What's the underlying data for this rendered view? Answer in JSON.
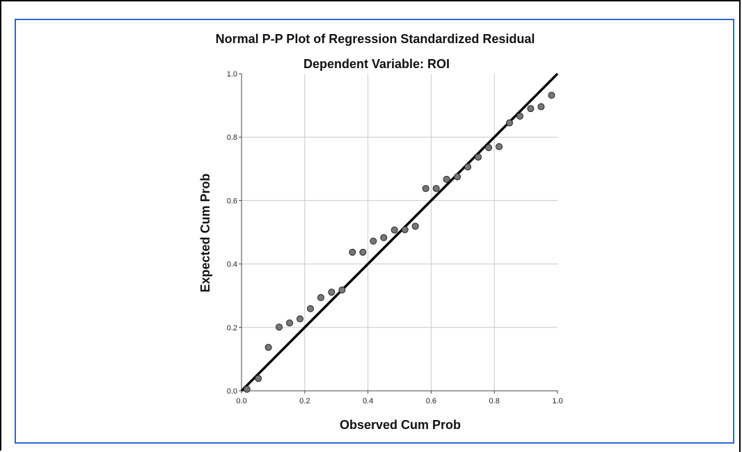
{
  "chart_data": {
    "type": "scatter",
    "title": "Normal P-P Plot of Regression Standardized Residual",
    "subtitle": "Dependent Variable: ROI",
    "xlabel": "Observed Cum Prob",
    "ylabel": "Expected Cum Prob",
    "xlim": [
      0.0,
      1.0
    ],
    "ylim": [
      0.0,
      1.0
    ],
    "xticks": [
      "0.0",
      "0.2",
      "0.4",
      "0.6",
      "0.8",
      "1.0"
    ],
    "yticks": [
      "0.0",
      "0.2",
      "0.4",
      "0.6",
      "0.8",
      "1.0"
    ],
    "grid": true,
    "reference_line": [
      [
        0,
        0
      ],
      [
        1,
        1
      ]
    ],
    "points": [
      {
        "x": 0.017,
        "y": 0.005
      },
      {
        "x": 0.053,
        "y": 0.039
      },
      {
        "x": 0.085,
        "y": 0.137
      },
      {
        "x": 0.119,
        "y": 0.201
      },
      {
        "x": 0.152,
        "y": 0.214
      },
      {
        "x": 0.185,
        "y": 0.227
      },
      {
        "x": 0.218,
        "y": 0.259
      },
      {
        "x": 0.251,
        "y": 0.294
      },
      {
        "x": 0.285,
        "y": 0.311
      },
      {
        "x": 0.318,
        "y": 0.318
      },
      {
        "x": 0.351,
        "y": 0.437
      },
      {
        "x": 0.384,
        "y": 0.437
      },
      {
        "x": 0.417,
        "y": 0.472
      },
      {
        "x": 0.45,
        "y": 0.483
      },
      {
        "x": 0.484,
        "y": 0.507
      },
      {
        "x": 0.517,
        "y": 0.508
      },
      {
        "x": 0.55,
        "y": 0.519
      },
      {
        "x": 0.583,
        "y": 0.638
      },
      {
        "x": 0.616,
        "y": 0.638
      },
      {
        "x": 0.649,
        "y": 0.667
      },
      {
        "x": 0.683,
        "y": 0.675
      },
      {
        "x": 0.716,
        "y": 0.706
      },
      {
        "x": 0.749,
        "y": 0.737
      },
      {
        "x": 0.782,
        "y": 0.767
      },
      {
        "x": 0.815,
        "y": 0.77
      },
      {
        "x": 0.848,
        "y": 0.845
      },
      {
        "x": 0.881,
        "y": 0.866
      },
      {
        "x": 0.915,
        "y": 0.89
      },
      {
        "x": 0.948,
        "y": 0.896
      },
      {
        "x": 0.981,
        "y": 0.932
      }
    ],
    "colors": {
      "frame": "#2f66c9",
      "point_fill": "#777777",
      "point_stroke": "#222222",
      "line": "#000000",
      "grid": "#c8c8c8"
    }
  }
}
